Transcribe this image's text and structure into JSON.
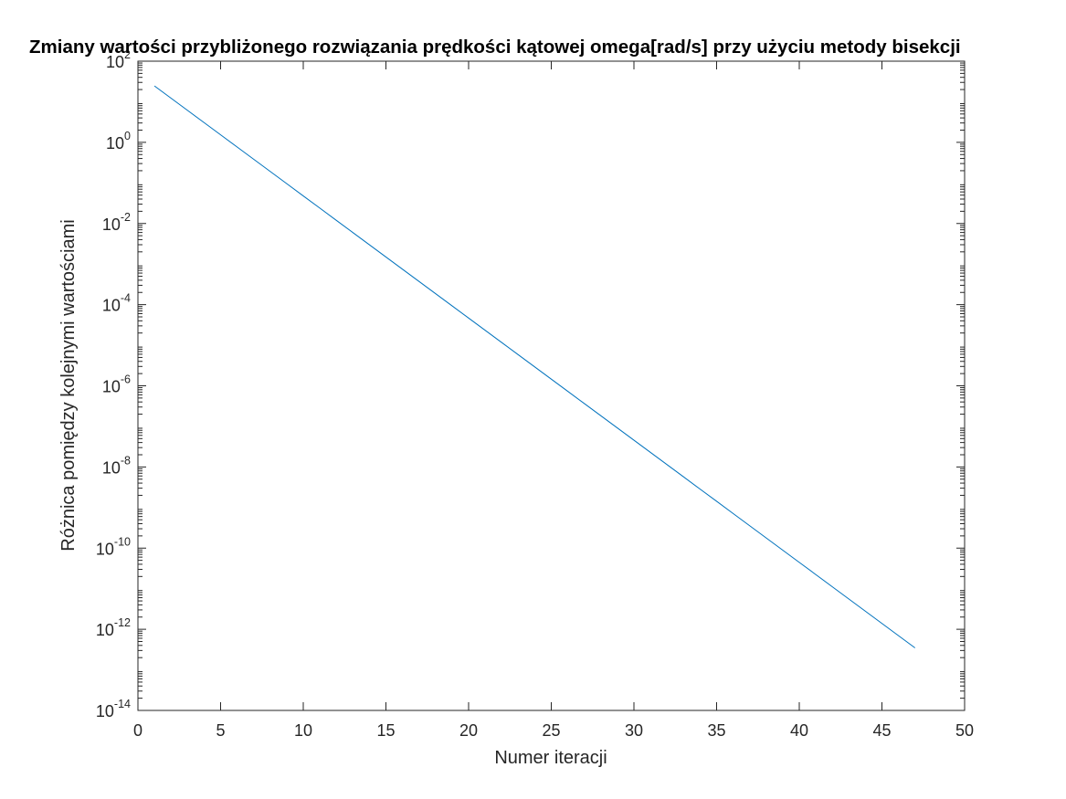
{
  "chart_data": {
    "type": "line",
    "title": "Zmiany wartości przybliżonego rozwiązania prędkości kątowej omega[rad/s] przy użyciu metody bisekcji",
    "xlabel": "Numer iteracji",
    "ylabel": "Różnica pomiędzy kolejnymi wartościami",
    "xlim": [
      0,
      50
    ],
    "ylim": [
      1e-14,
      100
    ],
    "yscale": "log",
    "grid": false,
    "x_ticks": [
      0,
      5,
      10,
      15,
      20,
      25,
      30,
      35,
      40,
      45,
      50
    ],
    "y_ticks": [
      {
        "base": "10",
        "exp": "-14",
        "value": 1e-14
      },
      {
        "base": "10",
        "exp": "-12",
        "value": 1e-12
      },
      {
        "base": "10",
        "exp": "-10",
        "value": 1e-10
      },
      {
        "base": "10",
        "exp": "-8",
        "value": 1e-08
      },
      {
        "base": "10",
        "exp": "-6",
        "value": 1e-06
      },
      {
        "base": "10",
        "exp": "-4",
        "value": 0.0001
      },
      {
        "base": "10",
        "exp": "-2",
        "value": 0.01
      },
      {
        "base": "10",
        "exp": "0",
        "value": 1
      },
      {
        "base": "10",
        "exp": "2",
        "value": 100
      }
    ],
    "series": [
      {
        "color": "#0072bd",
        "x_start": 1,
        "x_end": 47,
        "y_start": 24.5,
        "ratio": 0.5
      }
    ]
  }
}
